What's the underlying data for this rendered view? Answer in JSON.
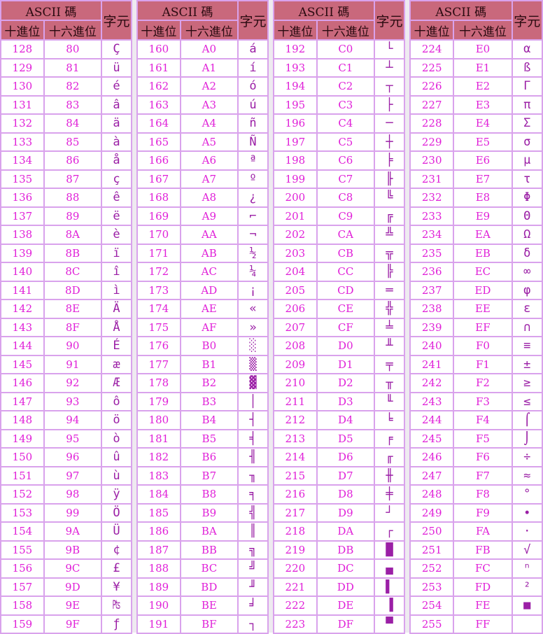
{
  "header": {
    "ascii": "ASCII 碼",
    "dec": "十進位",
    "hex": "十六進位",
    "char": "字元"
  },
  "blocks": [
    {
      "rows": [
        [
          "128",
          "80",
          "Ç"
        ],
        [
          "129",
          "81",
          "ü"
        ],
        [
          "130",
          "82",
          "é"
        ],
        [
          "131",
          "83",
          "â"
        ],
        [
          "132",
          "84",
          "ä"
        ],
        [
          "133",
          "85",
          "à"
        ],
        [
          "134",
          "86",
          "å"
        ],
        [
          "135",
          "87",
          "ç"
        ],
        [
          "136",
          "88",
          "ê"
        ],
        [
          "137",
          "89",
          "ë"
        ],
        [
          "138",
          "8A",
          "è"
        ],
        [
          "139",
          "8B",
          "ï"
        ],
        [
          "140",
          "8C",
          "î"
        ],
        [
          "141",
          "8D",
          "ì"
        ],
        [
          "142",
          "8E",
          "Ä"
        ],
        [
          "143",
          "8F",
          "Å"
        ],
        [
          "144",
          "90",
          "É"
        ],
        [
          "145",
          "91",
          "æ"
        ],
        [
          "146",
          "92",
          "Æ"
        ],
        [
          "147",
          "93",
          "ô"
        ],
        [
          "148",
          "94",
          "ö"
        ],
        [
          "149",
          "95",
          "ò"
        ],
        [
          "150",
          "96",
          "û"
        ],
        [
          "151",
          "97",
          "ù"
        ],
        [
          "152",
          "98",
          "ÿ"
        ],
        [
          "153",
          "99",
          "Ö"
        ],
        [
          "154",
          "9A",
          "Ü"
        ],
        [
          "155",
          "9B",
          "¢"
        ],
        [
          "156",
          "9C",
          "£"
        ],
        [
          "157",
          "9D",
          "¥"
        ],
        [
          "158",
          "9E",
          "₧"
        ],
        [
          "159",
          "9F",
          "ƒ"
        ]
      ]
    },
    {
      "rows": [
        [
          "160",
          "A0",
          "á"
        ],
        [
          "161",
          "A1",
          "í"
        ],
        [
          "162",
          "A2",
          "ó"
        ],
        [
          "163",
          "A3",
          "ú"
        ],
        [
          "164",
          "A4",
          "ñ"
        ],
        [
          "165",
          "A5",
          "Ñ"
        ],
        [
          "166",
          "A6",
          "ª"
        ],
        [
          "167",
          "A7",
          "º"
        ],
        [
          "168",
          "A8",
          "¿"
        ],
        [
          "169",
          "A9",
          "⌐"
        ],
        [
          "170",
          "AA",
          "¬"
        ],
        [
          "171",
          "AB",
          "½"
        ],
        [
          "172",
          "AC",
          "¼"
        ],
        [
          "173",
          "AD",
          "¡"
        ],
        [
          "174",
          "AE",
          "«"
        ],
        [
          "175",
          "AF",
          "»"
        ],
        [
          "176",
          "B0",
          "░"
        ],
        [
          "177",
          "B1",
          "▒"
        ],
        [
          "178",
          "B2",
          "▓"
        ],
        [
          "179",
          "B3",
          "│"
        ],
        [
          "180",
          "B4",
          "┤"
        ],
        [
          "181",
          "B5",
          "╡"
        ],
        [
          "182",
          "B6",
          "╢"
        ],
        [
          "183",
          "B7",
          "╖"
        ],
        [
          "184",
          "B8",
          "╕"
        ],
        [
          "185",
          "B9",
          "╣"
        ],
        [
          "186",
          "BA",
          "║"
        ],
        [
          "187",
          "BB",
          "╗"
        ],
        [
          "188",
          "BC",
          "╝"
        ],
        [
          "189",
          "BD",
          "╜"
        ],
        [
          "190",
          "BE",
          "╛"
        ],
        [
          "191",
          "BF",
          "┐"
        ]
      ]
    },
    {
      "rows": [
        [
          "192",
          "C0",
          "└"
        ],
        [
          "193",
          "C1",
          "┴"
        ],
        [
          "194",
          "C2",
          "┬"
        ],
        [
          "195",
          "C3",
          "├"
        ],
        [
          "196",
          "C4",
          "─"
        ],
        [
          "197",
          "C5",
          "┼"
        ],
        [
          "198",
          "C6",
          "╞"
        ],
        [
          "199",
          "C7",
          "╟"
        ],
        [
          "200",
          "C8",
          "╚"
        ],
        [
          "201",
          "C9",
          "╔"
        ],
        [
          "202",
          "CA",
          "╩"
        ],
        [
          "203",
          "CB",
          "╦"
        ],
        [
          "204",
          "CC",
          "╠"
        ],
        [
          "205",
          "CD",
          "═"
        ],
        [
          "206",
          "CE",
          "╬"
        ],
        [
          "207",
          "CF",
          "╧"
        ],
        [
          "208",
          "D0",
          "╨"
        ],
        [
          "209",
          "D1",
          "╤"
        ],
        [
          "210",
          "D2",
          "╥"
        ],
        [
          "211",
          "D3",
          "╙"
        ],
        [
          "212",
          "D4",
          "╘"
        ],
        [
          "213",
          "D5",
          "╒"
        ],
        [
          "214",
          "D6",
          "╓"
        ],
        [
          "215",
          "D7",
          "╫"
        ],
        [
          "216",
          "D8",
          "╪"
        ],
        [
          "217",
          "D9",
          "┘"
        ],
        [
          "218",
          "DA",
          "┌"
        ],
        [
          "219",
          "DB",
          "█"
        ],
        [
          "220",
          "DC",
          "▄"
        ],
        [
          "221",
          "DD",
          "▌"
        ],
        [
          "222",
          "DE",
          "▐"
        ],
        [
          "223",
          "DF",
          "▀"
        ]
      ]
    },
    {
      "rows": [
        [
          "224",
          "E0",
          "α"
        ],
        [
          "225",
          "E1",
          "ß"
        ],
        [
          "226",
          "E2",
          "Γ"
        ],
        [
          "227",
          "E3",
          "π"
        ],
        [
          "228",
          "E4",
          "Σ"
        ],
        [
          "229",
          "E5",
          "σ"
        ],
        [
          "230",
          "E6",
          "µ"
        ],
        [
          "231",
          "E7",
          "τ"
        ],
        [
          "232",
          "E8",
          "Φ"
        ],
        [
          "233",
          "E9",
          "Θ"
        ],
        [
          "234",
          "EA",
          "Ω"
        ],
        [
          "235",
          "EB",
          "δ"
        ],
        [
          "236",
          "EC",
          "∞"
        ],
        [
          "237",
          "ED",
          "φ"
        ],
        [
          "238",
          "EE",
          "ε"
        ],
        [
          "239",
          "EF",
          "∩"
        ],
        [
          "240",
          "F0",
          "≡"
        ],
        [
          "241",
          "F1",
          "±"
        ],
        [
          "242",
          "F2",
          "≥"
        ],
        [
          "243",
          "F3",
          "≤"
        ],
        [
          "244",
          "F4",
          "⌠"
        ],
        [
          "245",
          "F5",
          "⌡"
        ],
        [
          "246",
          "F6",
          "÷"
        ],
        [
          "247",
          "F7",
          "≈"
        ],
        [
          "248",
          "F8",
          "°"
        ],
        [
          "249",
          "F9",
          "∙"
        ],
        [
          "250",
          "FA",
          "·"
        ],
        [
          "251",
          "FB",
          "√"
        ],
        [
          "252",
          "FC",
          "ⁿ"
        ],
        [
          "253",
          "FD",
          "²"
        ],
        [
          "254",
          "FE",
          "■"
        ],
        [
          "255",
          "FF",
          ""
        ]
      ]
    }
  ]
}
